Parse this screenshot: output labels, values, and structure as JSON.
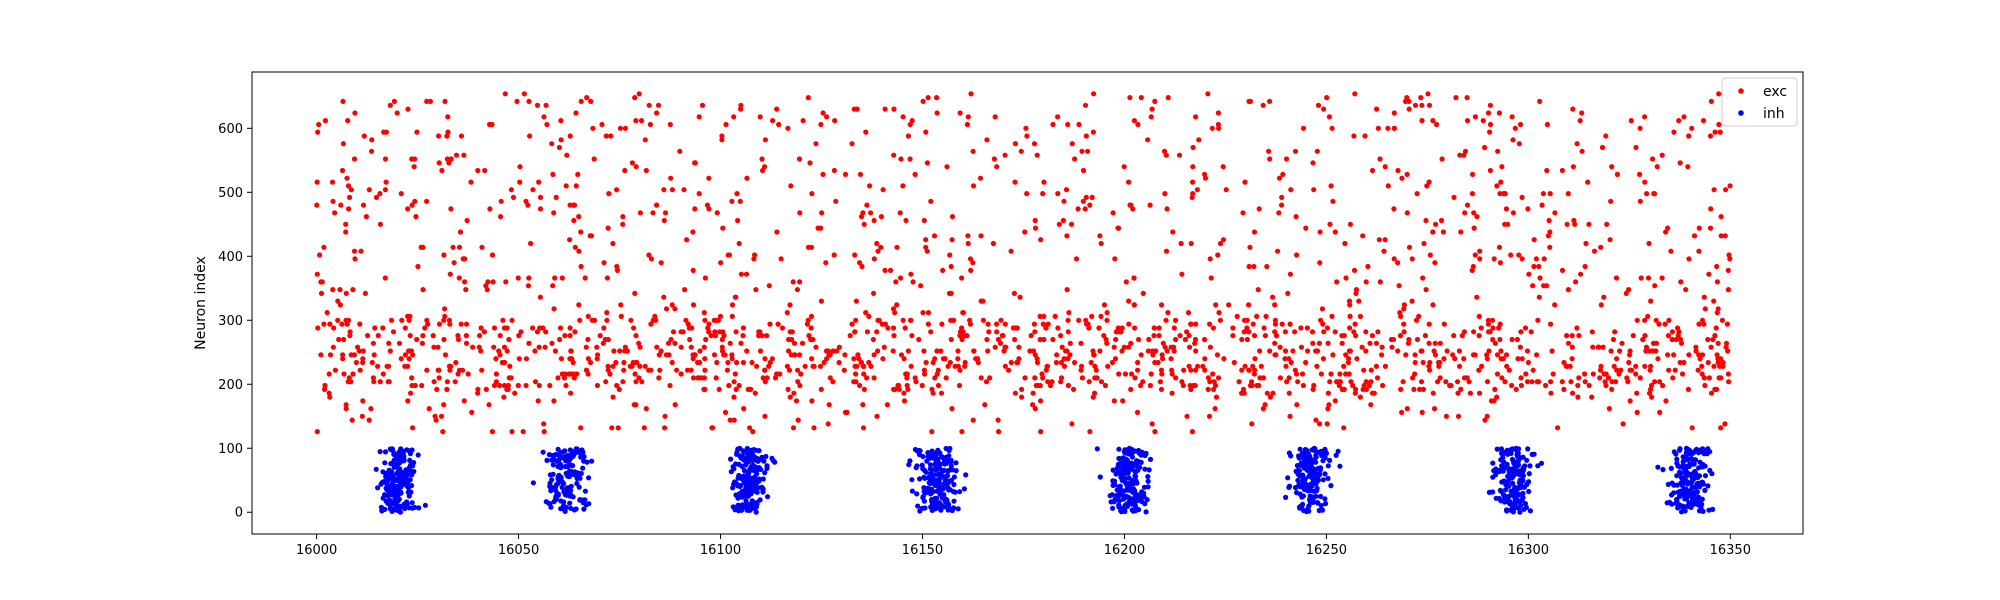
{
  "chart_data": {
    "type": "scatter",
    "xlabel": "",
    "ylabel": "Neuron index",
    "xlim": [
      15984,
      16368
    ],
    "ylim": [
      -34,
      688
    ],
    "xticks": [
      16000,
      16050,
      16100,
      16150,
      16200,
      16250,
      16300,
      16350
    ],
    "yticks": [
      0,
      100,
      200,
      300,
      400,
      500,
      600
    ],
    "grid": false,
    "legend": {
      "placement": "top-right",
      "entries": [
        "exc",
        "inh"
      ]
    },
    "generation": {
      "x_start": 16000,
      "x_end": 16350,
      "exc_points": 2100
    },
    "series": [
      {
        "name": "exc",
        "color": "#ff0000",
        "marker": "dot",
        "neuron_range": [
          125,
          656
        ]
      },
      {
        "name": "inh",
        "color": "#0000ff",
        "marker": "dot",
        "neuron_range": [
          0,
          100
        ],
        "bursts": [
          {
            "x": 16020,
            "spread": 2.2,
            "points": 190
          },
          {
            "x": 16062,
            "spread": 2.6,
            "points": 150
          },
          {
            "x": 16107,
            "spread": 2.2,
            "points": 180
          },
          {
            "x": 16154,
            "spread": 2.4,
            "points": 180
          },
          {
            "x": 16201,
            "spread": 2.3,
            "points": 175
          },
          {
            "x": 16246,
            "spread": 2.4,
            "points": 175
          },
          {
            "x": 16296,
            "spread": 2.3,
            "points": 170
          },
          {
            "x": 16340,
            "spread": 2.4,
            "points": 170
          }
        ]
      }
    ]
  }
}
